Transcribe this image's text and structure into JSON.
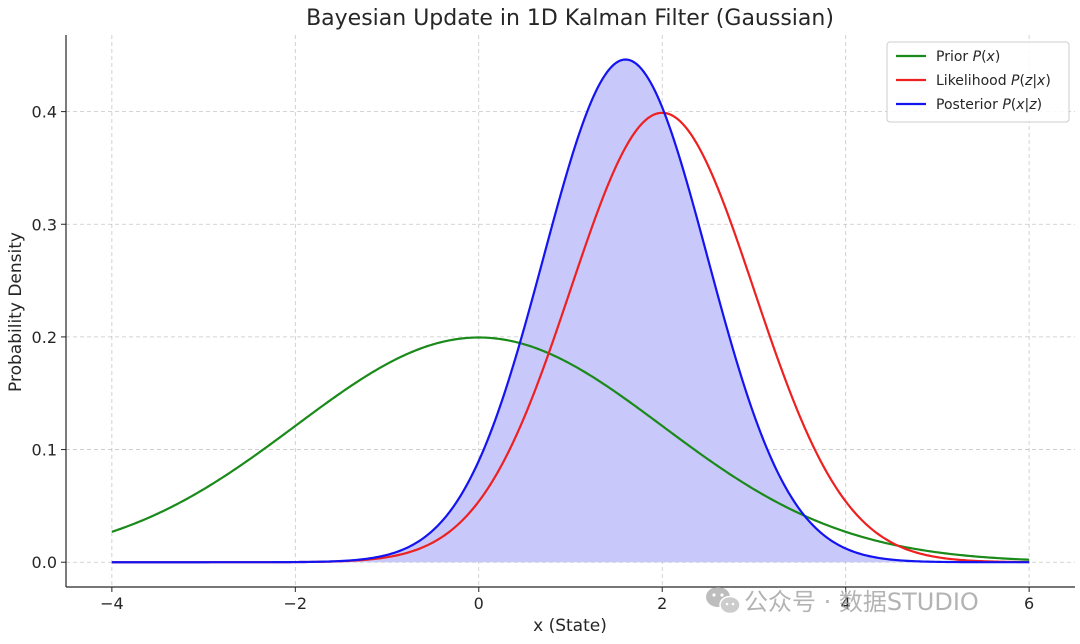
{
  "chart_data": {
    "type": "line",
    "title": "Bayesian Update in 1D Kalman Filter (Gaussian)",
    "xlabel": "x (State)",
    "ylabel": "Probability Density",
    "xlim": [
      -4.5,
      6.5
    ],
    "ylim": [
      -0.022,
      0.468
    ],
    "x_ticks": [
      -4,
      -2,
      0,
      2,
      4,
      6
    ],
    "x_tick_labels": [
      "−4",
      "−2",
      "0",
      "2",
      "4",
      "6"
    ],
    "y_ticks": [
      0.0,
      0.1,
      0.2,
      0.3,
      0.4
    ],
    "y_tick_labels": [
      "0.0",
      "0.1",
      "0.2",
      "0.3",
      "0.4"
    ],
    "grid": true,
    "legend_position": "top-right",
    "x_range": [
      -4,
      6
    ],
    "series": [
      {
        "name": "Prior P(x)",
        "legend_parts": [
          {
            "t": "Prior "
          },
          {
            "t": "P",
            "i": true
          },
          {
            "t": "("
          },
          {
            "t": "x",
            "i": true
          },
          {
            "t": ")"
          }
        ],
        "color": "#1a8a1a",
        "distribution": "normal",
        "mean": 0,
        "std": 2,
        "points": [
          [
            -4,
            0.027
          ],
          [
            -2,
            0.121
          ],
          [
            -1,
            0.176
          ],
          [
            0,
            0.199
          ],
          [
            1,
            0.176
          ],
          [
            2,
            0.121
          ],
          [
            4,
            0.027
          ],
          [
            6,
            0.002
          ]
        ]
      },
      {
        "name": "Likelihood P(z|x)",
        "legend_parts": [
          {
            "t": "Likelihood "
          },
          {
            "t": "P",
            "i": true
          },
          {
            "t": "("
          },
          {
            "t": "z",
            "i": true
          },
          {
            "t": "|"
          },
          {
            "t": "x",
            "i": true
          },
          {
            "t": ")"
          }
        ],
        "color": "#ee2020",
        "distribution": "normal",
        "mean": 2,
        "std": 1,
        "points": [
          [
            0,
            0.054
          ],
          [
            1,
            0.242
          ],
          [
            2,
            0.399
          ],
          [
            3,
            0.242
          ],
          [
            4,
            0.054
          ],
          [
            6,
            0.0
          ]
        ]
      },
      {
        "name": "Posterior P(x|z)",
        "legend_parts": [
          {
            "t": "Posterior "
          },
          {
            "t": "P",
            "i": true
          },
          {
            "t": "("
          },
          {
            "t": "x",
            "i": true
          },
          {
            "t": "|"
          },
          {
            "t": "z",
            "i": true
          },
          {
            "t": ")"
          }
        ],
        "color": "#1414f0",
        "fill": "#c8c8fa",
        "distribution": "normal",
        "mean": 1.6,
        "std": 0.894,
        "points": [
          [
            0,
            0.091
          ],
          [
            1,
            0.356
          ],
          [
            1.6,
            0.446
          ],
          [
            2,
            0.404
          ],
          [
            3,
            0.131
          ],
          [
            4,
            0.012
          ],
          [
            6,
            0.0
          ]
        ]
      }
    ]
  },
  "watermark": {
    "icon": "wechat-icon",
    "text": "公众号 · 数据STUDIO"
  }
}
